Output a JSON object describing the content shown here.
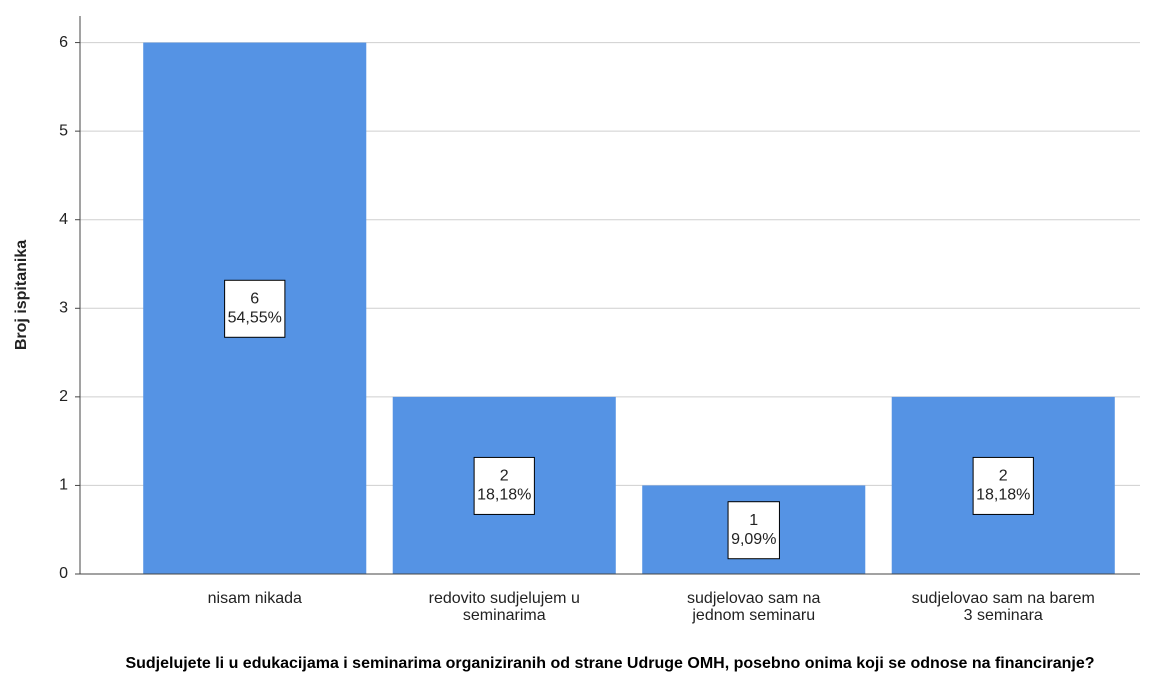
{
  "chart_data": {
    "type": "bar",
    "x_label": "Sudjelujete li u edukacijama i seminarima organiziranih od strane Udruge OMH, posebno onima koji se odnose na financiranje?",
    "y_label": "Broj ispitanika",
    "categories": [
      "nisam nikada",
      "redovito sudjelujem u seminarima",
      "sudjelovao sam na jednom seminaru",
      "sudjelovao sam na barem 3 seminara"
    ],
    "values": [
      6,
      2,
      1,
      2
    ],
    "percent_labels": [
      "54,55%",
      "18,18%",
      "9,09%",
      "18,18%"
    ],
    "color": "#5593e4",
    "ylim": [
      0,
      6.3
    ],
    "yticks": [
      0,
      1,
      2,
      3,
      4,
      5,
      6
    ],
    "grid": true
  }
}
